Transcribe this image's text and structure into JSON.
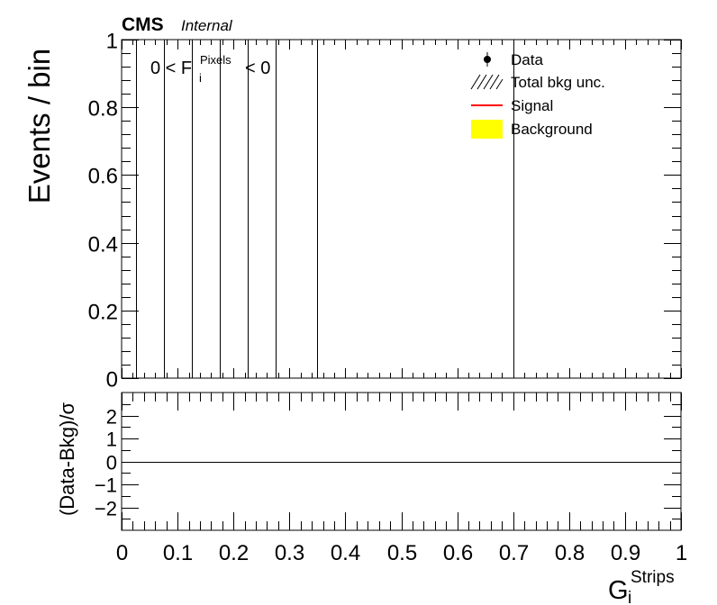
{
  "header": {
    "experiment": "CMS",
    "status": "Internal"
  },
  "colors": {
    "axis": "#000000",
    "signal": "#ff0000",
    "background_fill": "#ffff00",
    "data": "#000000"
  },
  "chart_data": [
    {
      "type": "bar",
      "panel": "main",
      "ylabel": "Events / bin",
      "xlim": [
        0,
        1
      ],
      "ylim": [
        0,
        1
      ],
      "yticks": [
        0,
        0.2,
        0.4,
        0.6,
        0.8,
        1
      ],
      "yticklabels": [
        "0",
        "0.2",
        "0.4",
        "0.6",
        "0.8",
        "1"
      ],
      "bin_edges": [
        0.025,
        0.075,
        0.125,
        0.175,
        0.225,
        0.275,
        0.35,
        0.7
      ],
      "annotation": {
        "prefix": "0 < F",
        "sup": "Pixels",
        "sub": "i",
        "suffix": "< 0"
      },
      "legend": {
        "placement": "top-right",
        "entries": [
          {
            "label": "Data",
            "style": "marker"
          },
          {
            "label": "Total bkg unc.",
            "style": "hatch"
          },
          {
            "label": "Signal",
            "style": "line"
          },
          {
            "label": "Background",
            "style": "fill"
          }
        ]
      }
    },
    {
      "type": "line",
      "panel": "ratio",
      "ylabel": "(Data-Bkg)/σ",
      "xlabel_main": "G",
      "xlabel_sup": "Strips",
      "xlabel_sub": "i",
      "xlim": [
        0,
        1
      ],
      "ylim": [
        -3,
        3
      ],
      "yticks": [
        -2,
        -1,
        0,
        1,
        2
      ],
      "yticklabels": [
        "−2",
        "−1",
        "0",
        "1",
        "2"
      ],
      "xticks": [
        0,
        0.1,
        0.2,
        0.3,
        0.4,
        0.5,
        0.6,
        0.7,
        0.8,
        0.9,
        1
      ],
      "xticklabels": [
        "0",
        "0.1",
        "0.2",
        "0.3",
        "0.4",
        "0.5",
        "0.6",
        "0.7",
        "0.8",
        "0.9",
        "1"
      ],
      "reference_line": 0
    }
  ]
}
